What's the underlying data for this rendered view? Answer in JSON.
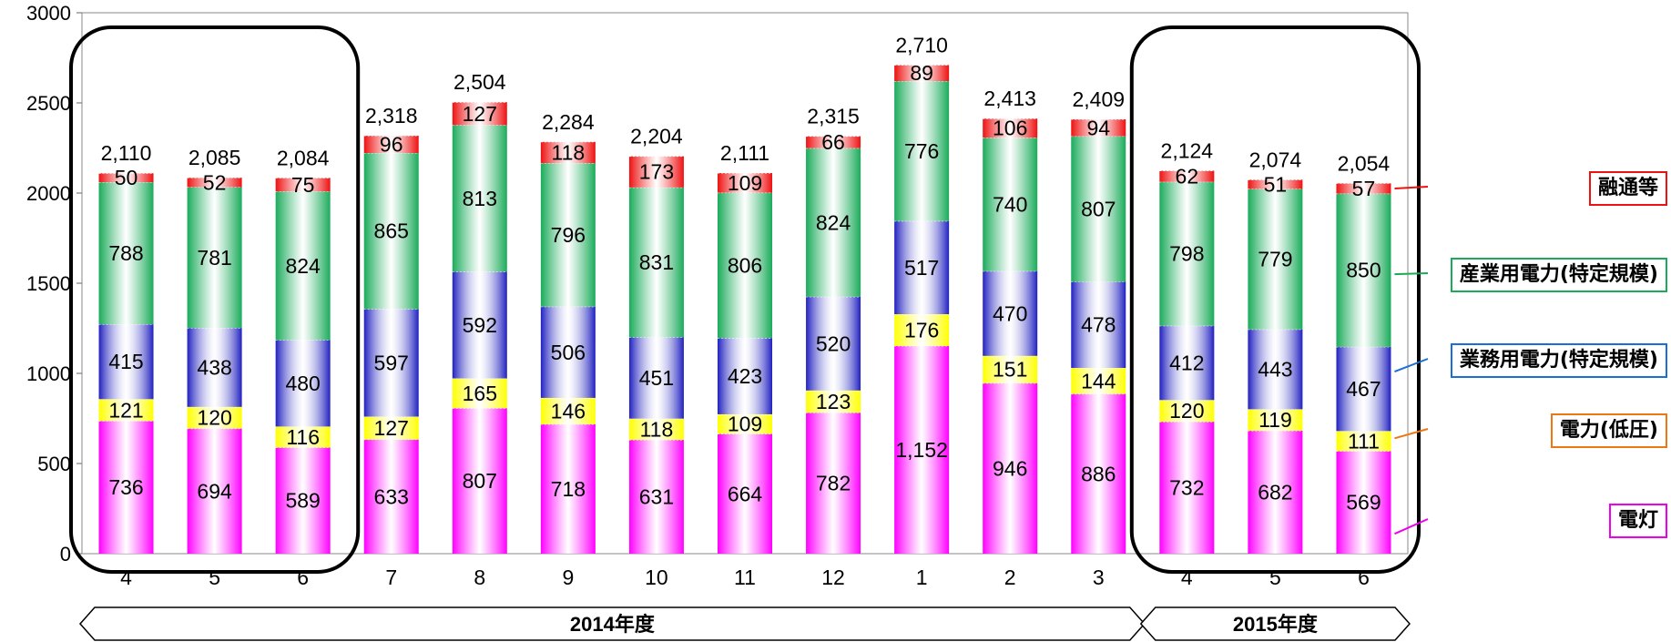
{
  "chart_data": {
    "type": "bar",
    "stacked": true,
    "categories": [
      "4",
      "5",
      "6",
      "7",
      "8",
      "9",
      "10",
      "11",
      "12",
      "1",
      "2",
      "3",
      "4",
      "5",
      "6"
    ],
    "groups": [
      {
        "label": "2014年度",
        "from_index": 0,
        "to_index": 11
      },
      {
        "label": "2015年度",
        "from_index": 12,
        "to_index": 14
      }
    ],
    "highlighted_ranges": [
      [
        0,
        2
      ],
      [
        12,
        14
      ]
    ],
    "ylim": [
      0,
      3000
    ],
    "yticks": [
      0,
      500,
      1000,
      1500,
      2000,
      2500,
      3000
    ],
    "grid": false,
    "legend_position": "right",
    "series": [
      {
        "name": "電灯",
        "color": "#ff00ff",
        "values": [
          736,
          694,
          589,
          633,
          807,
          718,
          631,
          664,
          782,
          1152,
          946,
          886,
          732,
          682,
          569
        ],
        "labels": [
          "736",
          "694",
          "589",
          "633",
          "807",
          "718",
          "631",
          "664",
          "782",
          "1,152",
          "946",
          "886",
          "732",
          "682",
          "569"
        ]
      },
      {
        "name": "電力(低圧)",
        "color": "#ffff00",
        "values": [
          121,
          120,
          116,
          127,
          165,
          146,
          118,
          109,
          123,
          176,
          151,
          144,
          120,
          119,
          111
        ],
        "labels": [
          "121",
          "120",
          "116",
          "127",
          "165",
          "146",
          "118",
          "109",
          "123",
          "176",
          "151",
          "144",
          "120",
          "119",
          "111"
        ]
      },
      {
        "name": "業務用電力(特定規模)",
        "color": "#2020c0",
        "values": [
          415,
          438,
          480,
          597,
          592,
          506,
          451,
          423,
          520,
          517,
          470,
          478,
          412,
          443,
          467
        ],
        "labels": [
          "415",
          "438",
          "480",
          "597",
          "592",
          "506",
          "451",
          "423",
          "520",
          "517",
          "470",
          "478",
          "412",
          "443",
          "467"
        ]
      },
      {
        "name": "産業用電力(特定規模)",
        "color": "#1aab5a",
        "values": [
          788,
          781,
          824,
          865,
          813,
          796,
          831,
          806,
          824,
          776,
          740,
          807,
          798,
          779,
          850
        ],
        "labels": [
          "788",
          "781",
          "824",
          "865",
          "813",
          "796",
          "831",
          "806",
          "824",
          "776",
          "740",
          "807",
          "798",
          "779",
          "850"
        ]
      },
      {
        "name": "融通等",
        "color": "#ee1111",
        "values": [
          50,
          52,
          75,
          96,
          127,
          118,
          173,
          109,
          66,
          89,
          106,
          94,
          62,
          51,
          57
        ],
        "labels": [
          "50",
          "52",
          "75",
          "96",
          "127",
          "118",
          "173",
          "109",
          "66",
          "89",
          "106",
          "94",
          "62",
          "51",
          "57"
        ]
      }
    ],
    "totals": [
      2110,
      2085,
      2084,
      2318,
      2504,
      2284,
      2204,
      2111,
      2315,
      2710,
      2413,
      2409,
      2124,
      2074,
      2054
    ],
    "total_labels": [
      "2,110",
      "2,085",
      "2,084",
      "2,318",
      "2,504",
      "2,284",
      "2,204",
      "2,111",
      "2,315",
      "2,710",
      "2,413",
      "2,409",
      "2,124",
      "2,074",
      "2,054"
    ]
  },
  "legend": [
    {
      "label": "融通等",
      "border": "#ee1111"
    },
    {
      "label": "産業用電力(特定規模)",
      "border": "#1aab5a"
    },
    {
      "label": "業務用電力(特定規模)",
      "border": "#1a6fd6"
    },
    {
      "label": "電力(低圧)",
      "border": "#ee7711"
    },
    {
      "label": "電灯",
      "border": "#ee00ee"
    }
  ]
}
